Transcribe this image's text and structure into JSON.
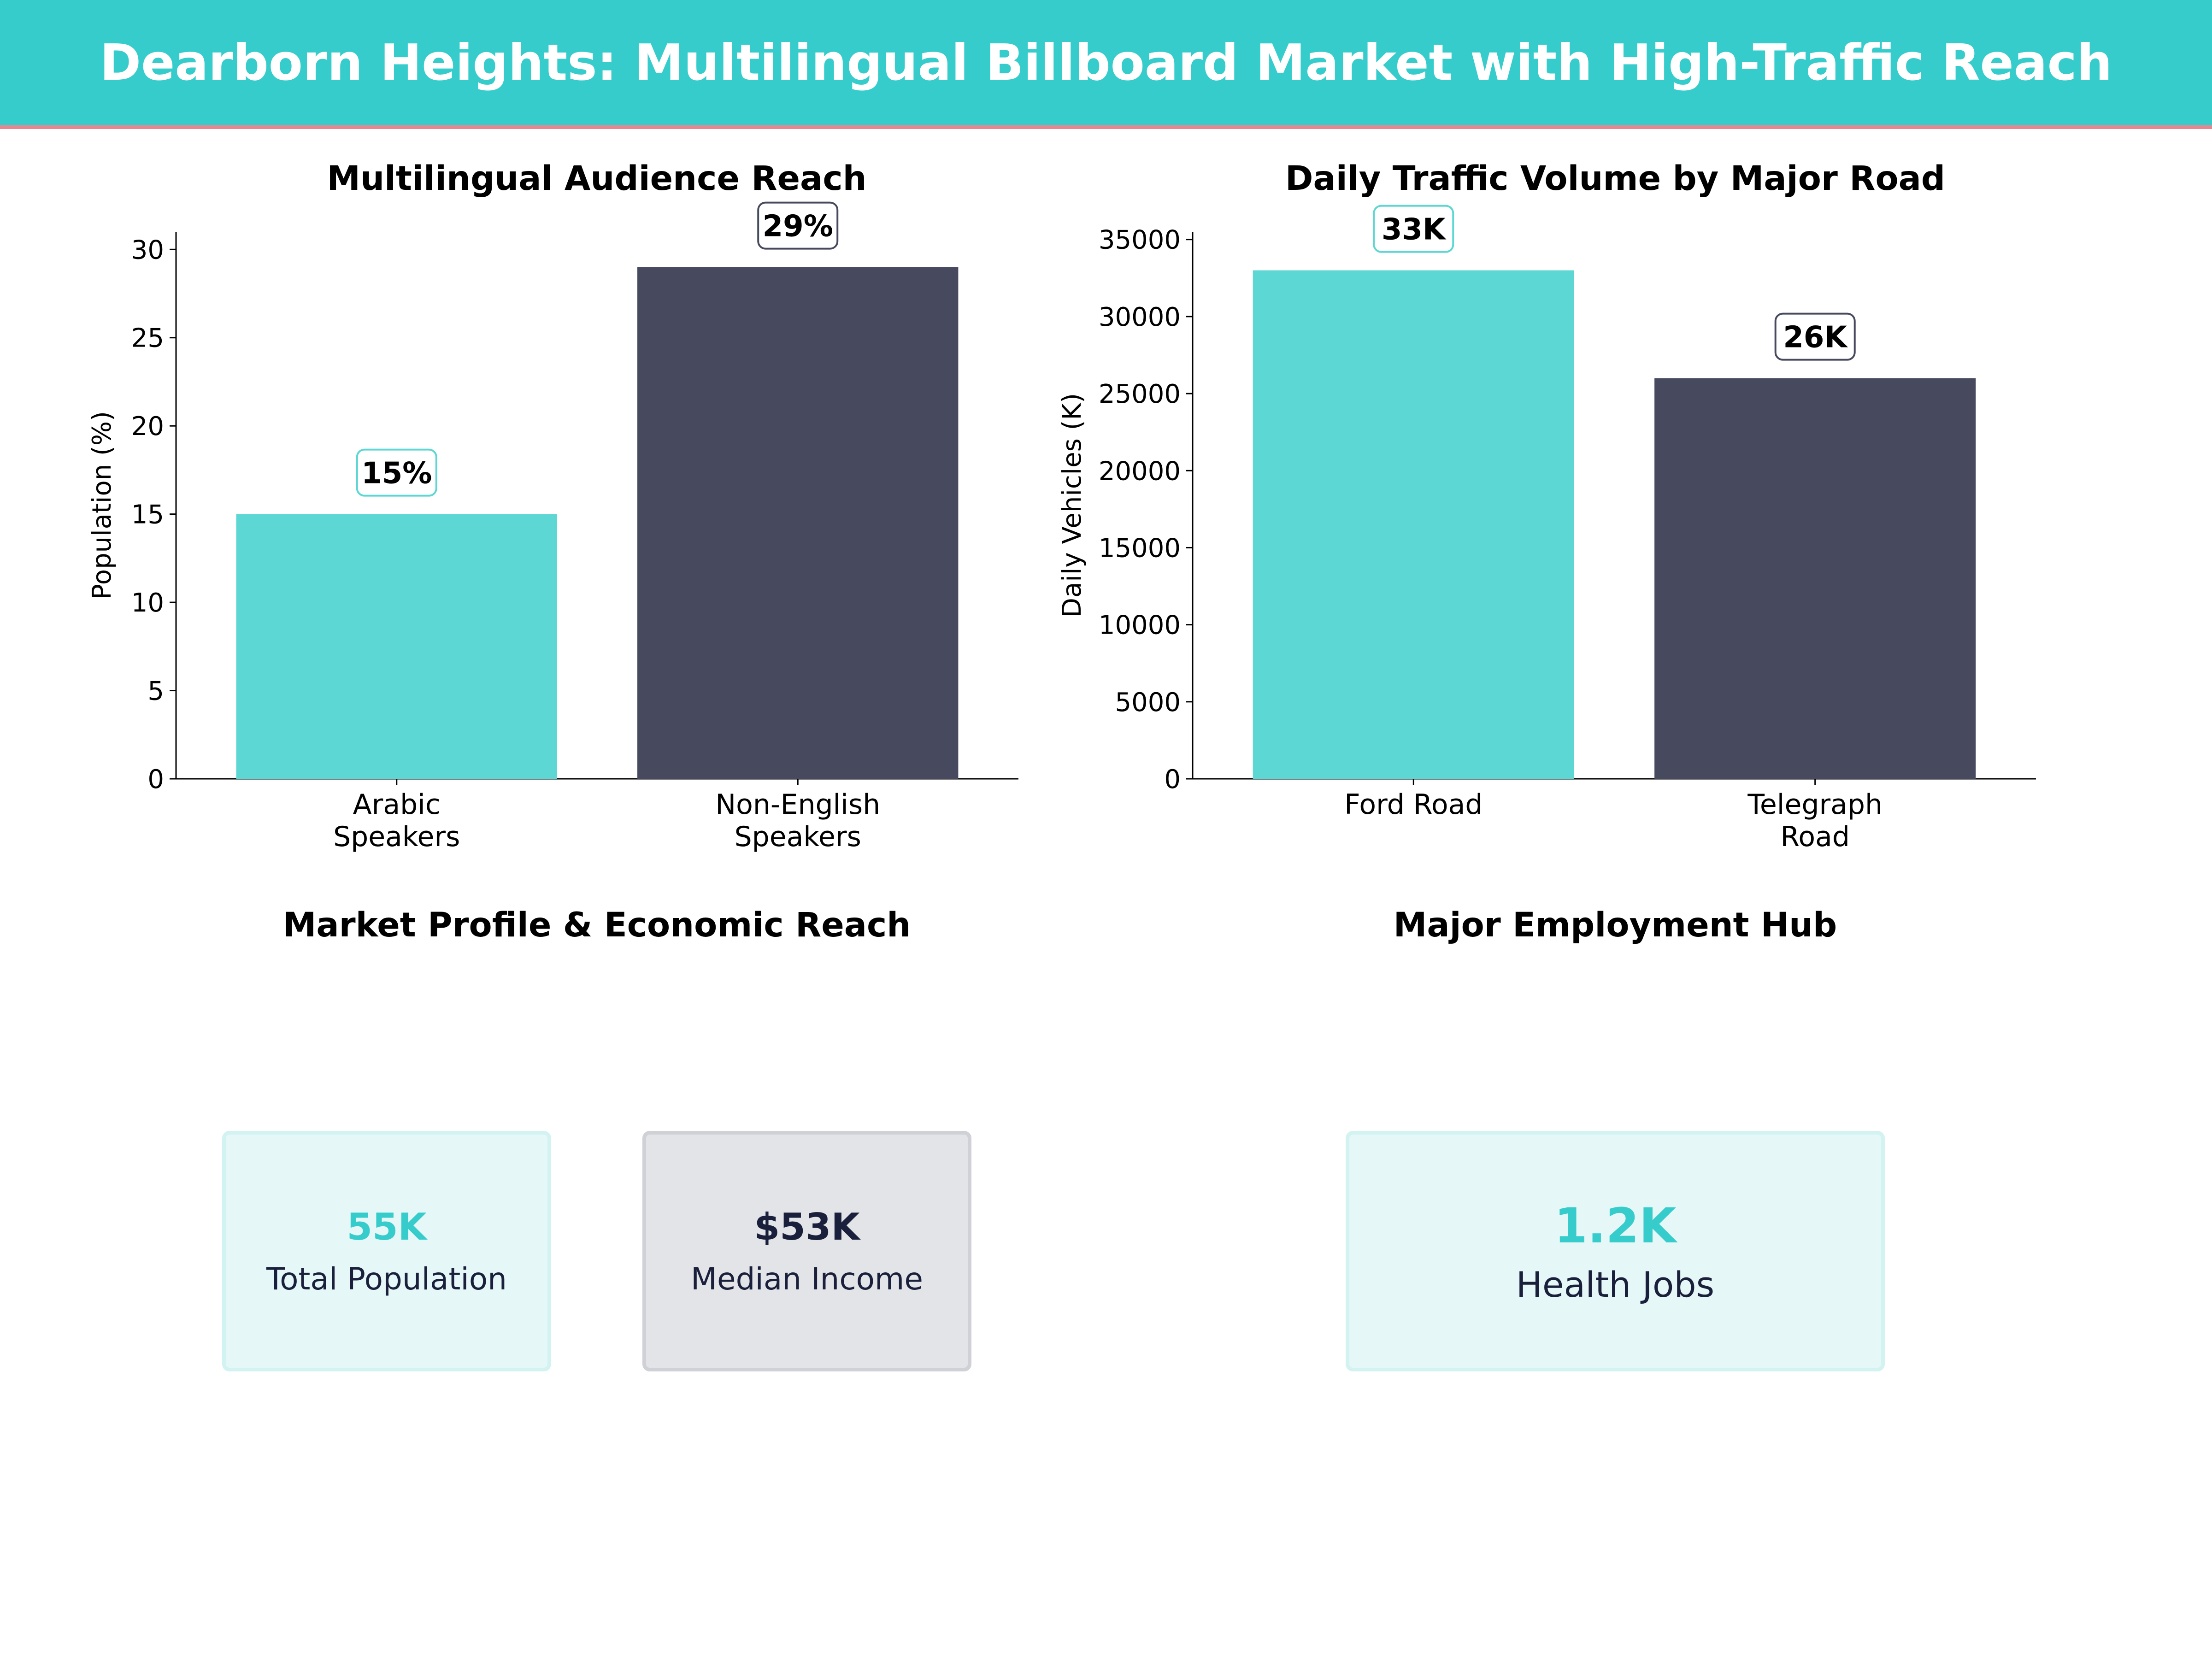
{
  "header": {
    "title": "Dearborn Heights: Multilingual Billboard Market with High-Traffic Reach"
  },
  "colors": {
    "header_bg": "#36cccc",
    "header_border": "#e8868f",
    "teal": "#5cd7d4",
    "navy": "#474a5f",
    "dark": "#1a1f3b"
  },
  "chart_data": [
    {
      "type": "bar",
      "title": "Multilingual Audience Reach",
      "ylabel": "Population (%)",
      "xlabel": "",
      "ylim": [
        0,
        31
      ],
      "yticks": [
        0,
        5,
        10,
        15,
        20,
        25,
        30
      ],
      "categories": [
        "Arabic\nSpeakers",
        "Non-English\nSpeakers"
      ],
      "values": [
        15,
        29
      ],
      "data_labels": [
        "15%",
        "29%"
      ],
      "colors": [
        "#5cd7d4",
        "#474a5f"
      ]
    },
    {
      "type": "bar",
      "title": "Daily Traffic Volume by Major Road",
      "ylabel": "Daily Vehicles (K)",
      "xlabel": "",
      "ylim": [
        0,
        35500
      ],
      "yticks": [
        0,
        5000,
        10000,
        15000,
        20000,
        25000,
        30000,
        35000
      ],
      "categories": [
        "Ford Road",
        "Telegraph\nRoad"
      ],
      "values": [
        33000,
        26000
      ],
      "data_labels": [
        "33K",
        "26K"
      ],
      "colors": [
        "#5cd7d4",
        "#474a5f"
      ]
    }
  ],
  "market_profile": {
    "title": "Market Profile & Economic Reach",
    "cards": [
      {
        "value": "55K",
        "label": "Total Population"
      },
      {
        "value": "$53K",
        "label": "Median Income"
      }
    ]
  },
  "employment": {
    "title": "Major Employment Hub",
    "card": {
      "value": "1.2K",
      "label": "Health Jobs"
    }
  }
}
